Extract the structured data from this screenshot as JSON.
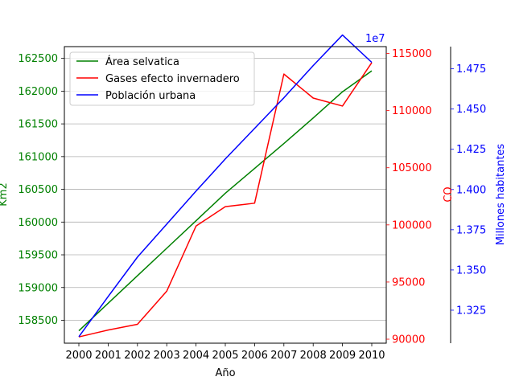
{
  "chart_data": {
    "type": "line",
    "xlabel": "Año",
    "x": [
      2000,
      2001,
      2002,
      2003,
      2004,
      2005,
      2006,
      2007,
      2008,
      2009,
      2010
    ],
    "grid": "horizontal",
    "legend_placement": "top-left",
    "axes": {
      "left": {
        "label": "Km2",
        "color": "#008000",
        "ylim": [
          158150,
          162680
        ],
        "ticks": [
          158500,
          159000,
          159500,
          160000,
          160500,
          161000,
          161500,
          162000,
          162500
        ]
      },
      "right1": {
        "label": "CO",
        "color": "#ff0000",
        "ylim": [
          89650,
          115600
        ],
        "ticks": [
          90000,
          95000,
          100000,
          105000,
          110000,
          115000
        ]
      },
      "right2": {
        "label": "Millones habitantes",
        "color": "#0000ff",
        "ylim": [
          1.3045,
          1.4888
        ],
        "ticks": [
          1.325,
          1.35,
          1.375,
          1.4,
          1.425,
          1.45,
          1.475
        ],
        "tick_labels": [
          "1.325",
          "1.350",
          "1.375",
          "1.400",
          "1.425",
          "1.450",
          "1.475"
        ],
        "offset_label": "1e7"
      }
    },
    "series": [
      {
        "name": "Área selvatica",
        "axis": "left",
        "color": "#008000",
        "values": [
          158340,
          158760,
          159180,
          159600,
          160020,
          160440,
          160820,
          161200,
          161590,
          161990,
          162310
        ]
      },
      {
        "name": "Gases efecto invernadero",
        "axis": "right1",
        "color": "#ff0000",
        "values": [
          90200,
          90800,
          91300,
          94200,
          99900,
          101600,
          101900,
          113200,
          111100,
          110400,
          114200
        ]
      },
      {
        "name": "Población urbana",
        "axis": "right2",
        "color": "#0000ff",
        "values": [
          1.3085,
          1.3335,
          1.358,
          1.3785,
          1.399,
          1.419,
          1.438,
          1.457,
          1.477,
          1.496,
          1.479
        ]
      }
    ]
  }
}
